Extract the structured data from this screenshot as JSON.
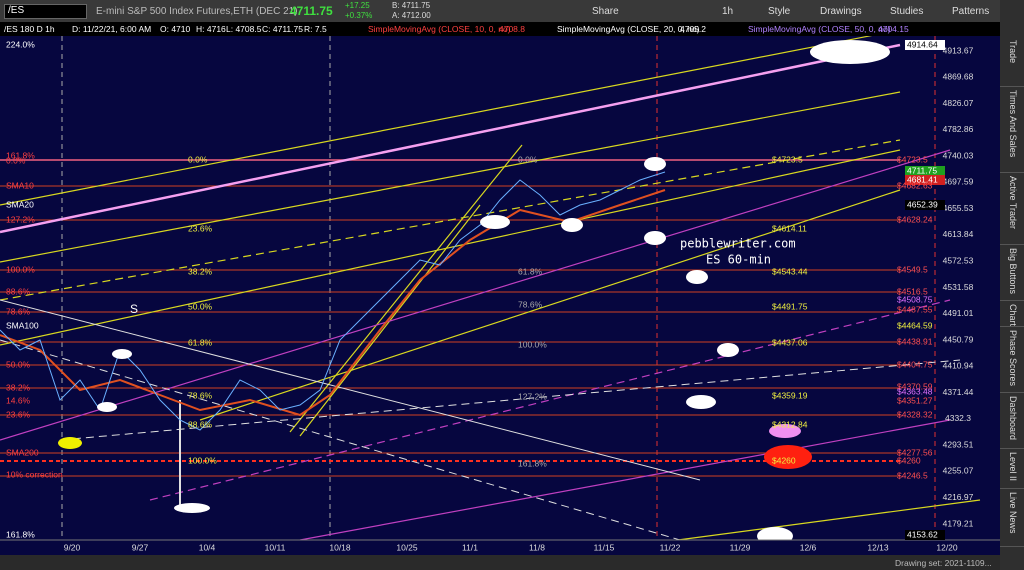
{
  "toolbar": {
    "symbol": "/ES",
    "description": "E-mini S&P 500 Index Futures,ETH (DEC 21)",
    "last": "4711.75",
    "change": "+17.25",
    "change_pct": "+0.37%",
    "bid": "B: 4711.75",
    "ask": "A: 4712.00",
    "buttons": [
      "Share",
      "1h",
      "Style",
      "Drawings",
      "Studies",
      "Patterns"
    ]
  },
  "info_bar": {
    "items": [
      "/ES 180 D 1h",
      "D: 11/22/21, 6:00 AM",
      "O: 4710",
      "H: 4716",
      "L: 4708.5",
      "C: 4711.75",
      "R: 7.5"
    ],
    "studies": [
      {
        "label": "SimpleMovingAvg (CLOSE, 10, 0, no)",
        "value": "4708.8"
      },
      {
        "label": "SimpleMovingAvg (CLOSE, 20, 0, no)",
        "value": "4705.2"
      },
      {
        "label": "SimpleMovingAvg (CLOSE, 50, 0, no)",
        "value": "4704.15"
      }
    ]
  },
  "price_axis": [
    "4913.67",
    "4869.68",
    "4826.07",
    "4782.86",
    "4740.03",
    "4697.59",
    "4655.53",
    "4613.84",
    "4572.53",
    "4531.58",
    "4491.01",
    "4450.79",
    "4410.94",
    "4371.44",
    "4332.3",
    "4293.51",
    "4255.07",
    "4216.97",
    "4179.21"
  ],
  "price_markers": [
    "4914.64",
    "4711.75",
    "4681.41",
    "4652.39",
    "4153.62"
  ],
  "time_axis": [
    "9/20",
    "9/27",
    "10/4",
    "10/11",
    "10/18",
    "10/25",
    "11/1",
    "11/8",
    "11/15",
    "11/22",
    "11/29",
    "12/6",
    "12/13",
    "12/20"
  ],
  "side_tabs": [
    "Trade",
    "Times And Sales",
    "Active Trader",
    "Big Buttons",
    "Chart",
    "Phase Scores",
    "Dashboard",
    "Level II",
    "Live News"
  ],
  "annotations": {
    "watermark": [
      "pebblewriter.com",
      "ES 60-min"
    ],
    "left_labels": [
      "224.0%",
      "161.8%",
      "0.0%",
      "SMA10",
      "SMA20",
      "127.2%",
      "100.0%",
      "88.6%",
      "78.6%",
      "SMA100",
      "50.0%",
      "38.2%",
      "14.6%",
      "23.6%",
      "SMA200",
      "10% correction",
      "161.8%"
    ],
    "fib_labels_a": [
      "0.0%",
      "23.6%",
      "38.2%",
      "50.0%",
      "61.8%",
      "78.6%",
      "88.6%",
      "100.0%"
    ],
    "fib_labels_b": [
      "0.0%",
      "61.8%",
      "78.6%",
      "100.0%",
      "127.2%",
      "161.8%"
    ],
    "price_labels": [
      "$4723.5",
      "$4614.11",
      "$4543.44",
      "$4491.75",
      "$4437.06",
      "$4359.19",
      "$4312.84",
      "$4260"
    ],
    "right_labels": [
      "$4723.5",
      "$4682.63",
      "$4628.24",
      "$4549.5",
      "$4516.5",
      "$4508.75",
      "$4487.55",
      "$4464.59",
      "$4438.91",
      "$4404.75",
      "$4370.59",
      "$4363.48",
      "$4351.27",
      "$4328.32",
      "$4277.56",
      "$4260",
      "$4246.5"
    ]
  },
  "status": "Drawing set: 2021-1109..."
}
